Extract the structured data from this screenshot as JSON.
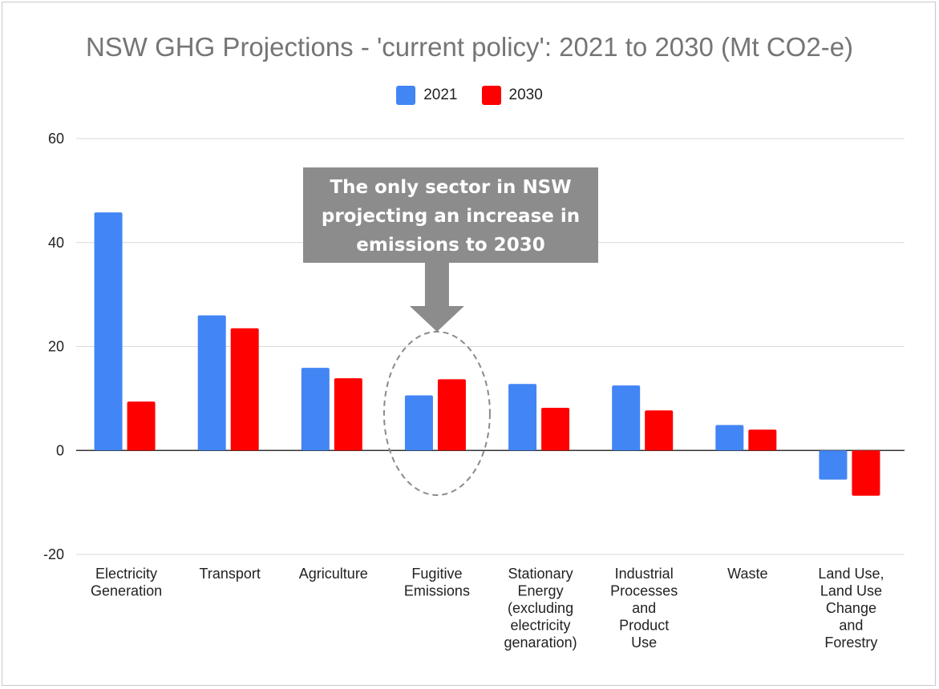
{
  "chart_data": {
    "type": "bar",
    "title": "NSW GHG Projections - 'current policy': 2021 to 2030 (Mt CO2-e)",
    "xlabel": "",
    "ylabel": "",
    "ylim": [
      -20,
      60
    ],
    "yticks": [
      "60",
      "40",
      "20",
      "0",
      "-20"
    ],
    "ytick_values": [
      60,
      40,
      20,
      0,
      -20
    ],
    "grid": true,
    "legend_position": "top-center",
    "categories": [
      [
        "Electricity",
        "Generation"
      ],
      [
        "Transport"
      ],
      [
        "Agriculture"
      ],
      [
        "Fugitive",
        "Emissions"
      ],
      [
        "Stationary",
        "Energy",
        "(excluding",
        "electricity",
        "genaration)"
      ],
      [
        "Industrial",
        "Processes",
        "and",
        "Product",
        "Use"
      ],
      [
        "Waste"
      ],
      [
        "Land Use,",
        "Land Use",
        "Change",
        "and",
        "Forestry"
      ]
    ],
    "series": [
      {
        "name": "2021",
        "color": "#4285f4",
        "values": [
          45.8,
          26.0,
          15.9,
          10.6,
          12.8,
          12.5,
          4.9,
          -5.6
        ]
      },
      {
        "name": "2030",
        "color": "#ff0000",
        "values": [
          9.4,
          23.5,
          13.9,
          13.7,
          8.2,
          7.7,
          4.0,
          -8.7
        ]
      }
    ],
    "annotation": {
      "text": [
        "The only sector in NSW",
        "projecting an increase in",
        "emissions to 2030"
      ],
      "target_category": "Fugitive Emissions",
      "box_color": "#8c8c8c"
    }
  }
}
